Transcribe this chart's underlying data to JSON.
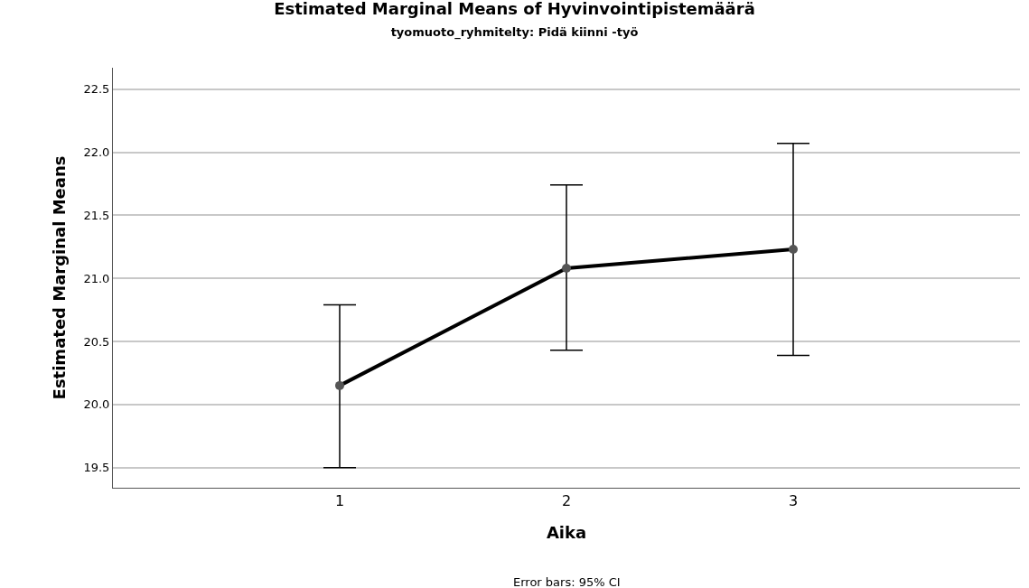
{
  "chart_data": {
    "type": "line",
    "title": "Estimated Marginal Means of Hyvinvointipistemäärä",
    "subtitle": "tyomuoto_ryhmitelty: Pidä kiinni -työ",
    "xlabel": "Aika",
    "ylabel": "Estimated Marginal Means",
    "categories": [
      "1",
      "2",
      "3"
    ],
    "series": [
      {
        "color": "#000000",
        "values": [
          20.15,
          21.08,
          21.23
        ],
        "errors": [
          [
            19.5,
            20.79
          ],
          [
            20.43,
            21.74
          ],
          [
            20.39,
            22.07
          ]
        ]
      }
    ],
    "ylim": [
      19.34,
      22.67
    ],
    "yticks": [
      {
        "value": 19.5,
        "label": "19.5"
      },
      {
        "value": 20,
        "label": "20.0"
      },
      {
        "value": 20.5,
        "label": "20.5"
      },
      {
        "value": 21,
        "label": "21.0"
      },
      {
        "value": 21.5,
        "label": "21.5"
      },
      {
        "value": 22,
        "label": "22.0"
      },
      {
        "value": 22.5,
        "label": "22.5"
      }
    ],
    "grid": "y",
    "marker": "circle",
    "line_style": "solid",
    "annotations": [
      "Error bars: 95% CI"
    ]
  }
}
